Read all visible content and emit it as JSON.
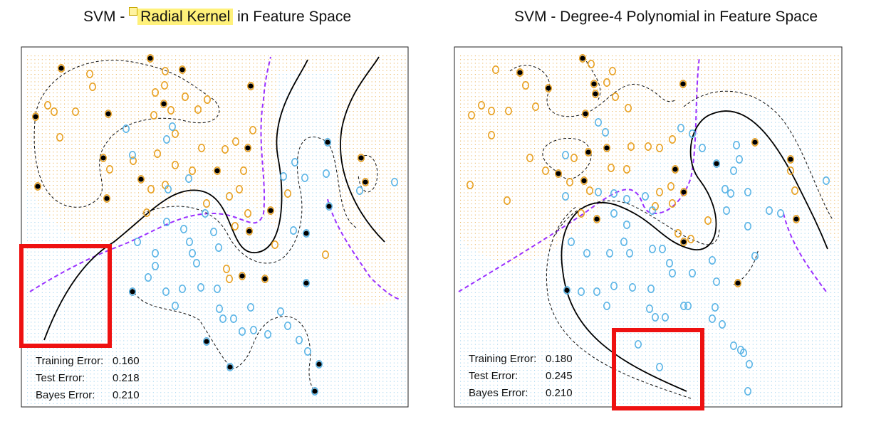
{
  "panels": [
    {
      "title_prefix": "SVM - ",
      "title_highlight": "Radial Kernel",
      "title_suffix": " in Feature Space",
      "stats": [
        {
          "label": "Training Error:",
          "value": "0.160"
        },
        {
          "label": "Test Error:",
          "value": "0.218"
        },
        {
          "label": "Bayes Error:",
          "value": "0.210"
        }
      ]
    },
    {
      "title": "SVM - Degree-4 Polynomial in Feature Space",
      "stats": [
        {
          "label": "Training Error:",
          "value": "0.180"
        },
        {
          "label": "Test Error:",
          "value": "0.245"
        },
        {
          "label": "Bayes Error:",
          "value": "0.210"
        }
      ]
    }
  ],
  "colors": {
    "class_orange": "#e8a020",
    "class_blue": "#5ab4e6",
    "grid_orange": "#eab45a",
    "grid_blue": "#9fd2ee",
    "bayes_boundary": "#9b30ff",
    "svm_boundary": "#000000",
    "support_vector": "#000000",
    "annotation_box": "#ee1111",
    "highlight": "#fff17a"
  },
  "chart_data": [
    {
      "type": "scatter",
      "title": "SVM - Radial Kernel in Feature Space",
      "xlabel": "",
      "ylabel": "",
      "series": [
        {
          "values": [
            {
              "x": 0.18,
              "y": 0.88
            },
            {
              "x": 0.35,
              "y": 0.85
            },
            {
              "x": 0.12,
              "y": 0.74
            },
            {
              "x": 0.4,
              "y": 0.62
            },
            {
              "x": 0.58,
              "y": 0.55
            },
            {
              "x": 0.3,
              "y": 0.5
            },
            {
              "x": 0.62,
              "y": 0.7
            }
          ]
        },
        {
          "values": [
            {
              "x": 0.78,
              "y": 0.62
            },
            {
              "x": 0.55,
              "y": 0.3
            },
            {
              "x": 0.45,
              "y": 0.22
            },
            {
              "x": 0.7,
              "y": 0.25
            },
            {
              "x": 0.3,
              "y": 0.32
            },
            {
              "x": 0.6,
              "y": 0.12
            },
            {
              "x": 0.9,
              "y": 0.6
            }
          ]
        }
      ],
      "note": "Orange and blue training points with black support vectors; solid black = SVM boundary, dashed black = margins, dashed purple = Bayes boundary",
      "grid": "dotted background shaded by predicted class"
    },
    {
      "type": "scatter",
      "title": "SVM - Degree-4 Polynomial in Feature Space",
      "xlabel": "",
      "ylabel": "",
      "series": [
        {
          "values": [
            {
              "x": 0.18,
              "y": 0.88
            },
            {
              "x": 0.35,
              "y": 0.85
            },
            {
              "x": 0.12,
              "y": 0.74
            },
            {
              "x": 0.4,
              "y": 0.62
            },
            {
              "x": 0.58,
              "y": 0.55
            },
            {
              "x": 0.3,
              "y": 0.5
            },
            {
              "x": 0.62,
              "y": 0.7
            }
          ]
        },
        {
          "values": [
            {
              "x": 0.78,
              "y": 0.62
            },
            {
              "x": 0.55,
              "y": 0.3
            },
            {
              "x": 0.45,
              "y": 0.22
            },
            {
              "x": 0.7,
              "y": 0.25
            },
            {
              "x": 0.3,
              "y": 0.32
            },
            {
              "x": 0.6,
              "y": 0.12
            },
            {
              "x": 0.9,
              "y": 0.6
            }
          ]
        }
      ],
      "grid": "dotted background shaded by predicted class"
    }
  ]
}
